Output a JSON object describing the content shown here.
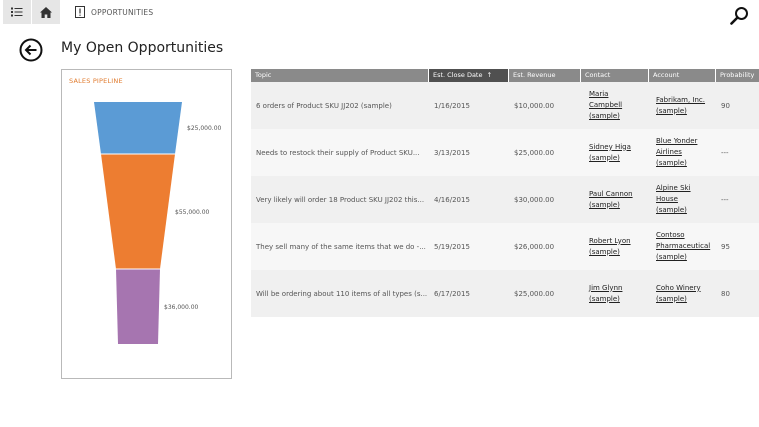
{
  "nav": {
    "list_icon": "list-icon",
    "home_icon": "home-icon",
    "breadcrumb_icon": "opportunity-icon",
    "breadcrumb_label": "OPPORTUNITIES",
    "search_icon": "search-icon"
  },
  "page": {
    "title": "My Open Opportunities",
    "back_icon": "back-arrow-icon"
  },
  "chart_data": {
    "type": "funnel",
    "title": "SALES PIPELINE",
    "stages": [
      {
        "label": "$25,000.00",
        "value": 25000,
        "color": "#5b9bd5"
      },
      {
        "label": "$55,000.00",
        "value": 55000,
        "color": "#ed7d31"
      },
      {
        "label": "$36,000.00",
        "value": 36000,
        "color": "#a675b0"
      }
    ]
  },
  "table": {
    "columns": [
      "Topic",
      "Est. Close Date",
      "Est. Revenue",
      "Contact",
      "Account",
      "Probability"
    ],
    "sorted_column": "Est. Close Date",
    "sort_indicator": "↑",
    "rows": [
      {
        "topic": "6 orders of Product SKU JJ202 (sample)",
        "close": "1/16/2015",
        "revenue": "$10,000.00",
        "contact_l1": "Maria",
        "contact_l2": "Campbell",
        "contact_l3": "(sample)",
        "account_l1": "Fabrikam, Inc.",
        "account_l2": "(sample)",
        "account_l3": "",
        "prob": "90"
      },
      {
        "topic": "Needs to restock their supply of Product SKU...",
        "close": "3/13/2015",
        "revenue": "$25,000.00",
        "contact_l1": "Sidney Higa",
        "contact_l2": "(sample)",
        "contact_l3": "",
        "account_l1": "Blue Yonder",
        "account_l2": "Airlines",
        "account_l3": "(sample)",
        "prob": "---"
      },
      {
        "topic": "Very likely will order 18 Product SKU JJ202 this...",
        "close": "4/16/2015",
        "revenue": "$30,000.00",
        "contact_l1": "Paul Cannon",
        "contact_l2": "(sample)",
        "contact_l3": "",
        "account_l1": "Alpine Ski",
        "account_l2": "House",
        "account_l3": "(sample)",
        "prob": "---"
      },
      {
        "topic": "They sell many of the same items that we do -...",
        "close": "5/19/2015",
        "revenue": "$26,000.00",
        "contact_l1": "Robert Lyon",
        "contact_l2": "(sample)",
        "contact_l3": "",
        "account_l1": "Contoso",
        "account_l2": "Pharmaceutical",
        "account_l3": "(sample)",
        "prob": "95"
      },
      {
        "topic": "Will be ordering about 110 items of all types (s...",
        "close": "6/17/2015",
        "revenue": "$25,000.00",
        "contact_l1": "Jim Glynn",
        "contact_l2": "(sample)",
        "contact_l3": "",
        "account_l1": "Coho Winery",
        "account_l2": "(sample)",
        "account_l3": "",
        "prob": "80"
      }
    ]
  }
}
